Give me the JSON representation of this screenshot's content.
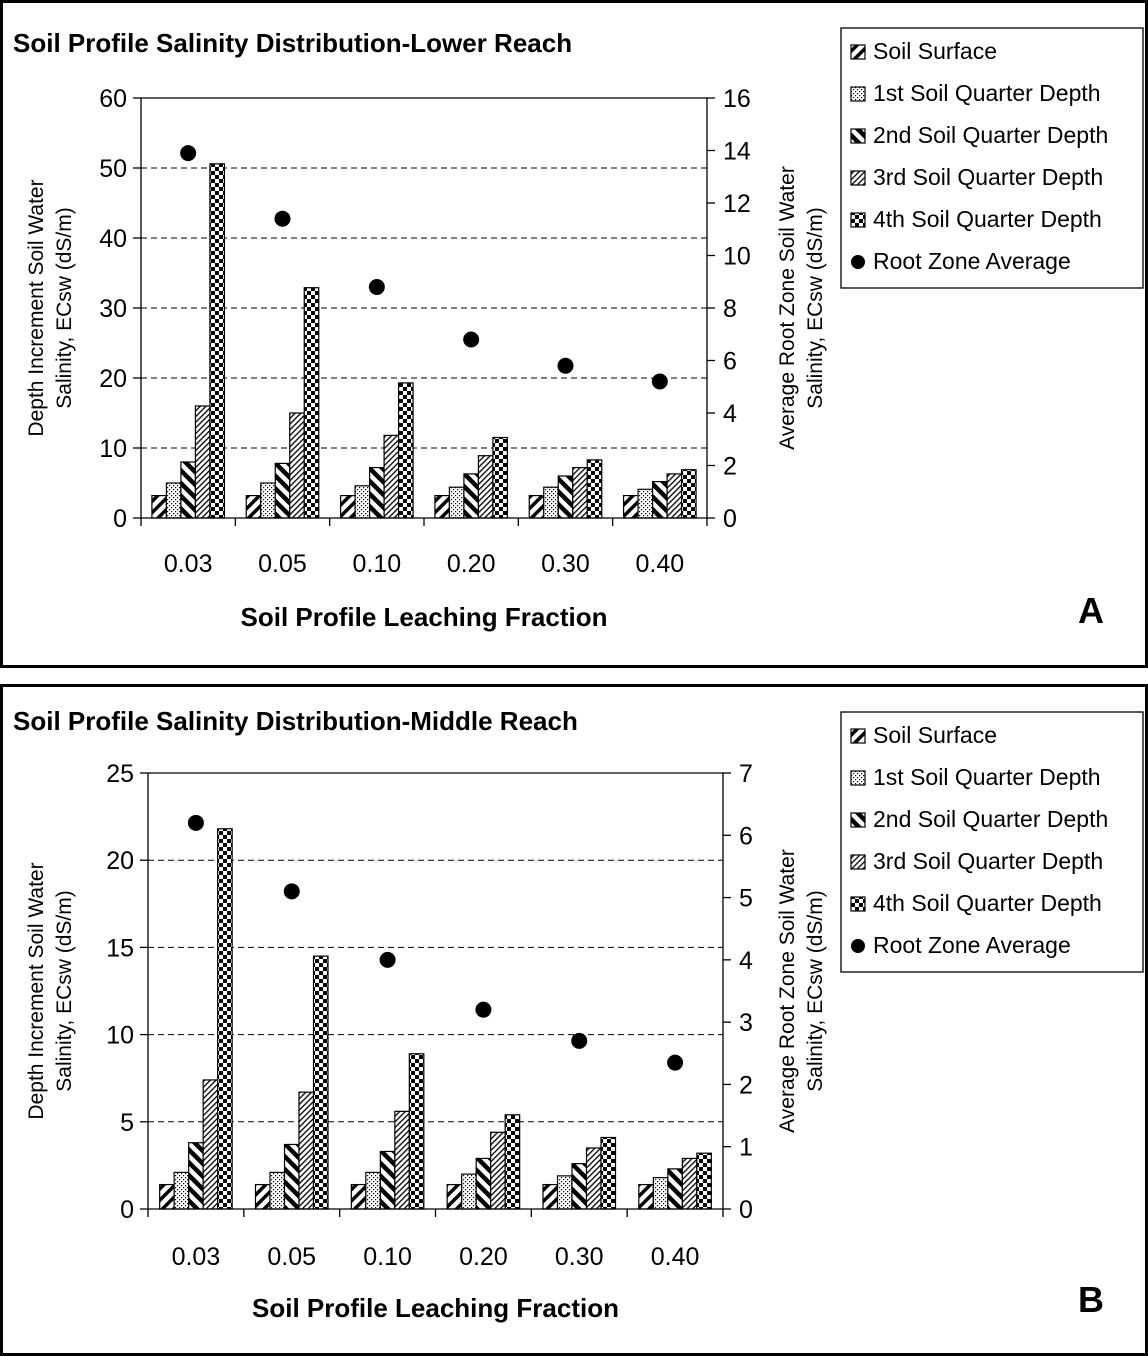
{
  "chart_data": [
    {
      "panel_letter": "A",
      "type": "bar",
      "title": "Soil Profile Salinity Distribution-Lower Reach",
      "xlabel": "Soil Profile Leaching Fraction",
      "ylabel_lines": [
        "Depth Increment Soil Water",
        "Salinity, ECsw (dS/m)"
      ],
      "y2label_lines": [
        "Average Root Zone Soil Water",
        "Salinity, ECsw (dS/m)"
      ],
      "categories": [
        "0.03",
        "0.05",
        "0.10",
        "0.20",
        "0.30",
        "0.40"
      ],
      "ylim": [
        0,
        60
      ],
      "yticks": [
        "0",
        "10",
        "20",
        "30",
        "40",
        "50",
        "60"
      ],
      "y2lim": [
        0,
        16
      ],
      "y2ticks": [
        "0",
        "2",
        "4",
        "6",
        "8",
        "10",
        "12",
        "14",
        "16"
      ],
      "grid": true,
      "legend_position": "top-right",
      "series": [
        {
          "name": "Soil Surface",
          "pattern": "diag-coarse",
          "values": [
            3.2,
            3.2,
            3.2,
            3.2,
            3.2,
            3.2
          ]
        },
        {
          "name": "1st Soil Quarter Depth",
          "pattern": "dots",
          "values": [
            5.0,
            5.0,
            4.6,
            4.4,
            4.4,
            4.1
          ]
        },
        {
          "name": "2nd Soil Quarter Depth",
          "pattern": "diag-reverse-thick",
          "values": [
            8.0,
            7.8,
            7.2,
            6.3,
            6.0,
            5.2
          ]
        },
        {
          "name": "3rd Soil Quarter Depth",
          "pattern": "diag-fine",
          "values": [
            16.0,
            15.0,
            11.8,
            8.9,
            7.2,
            6.3
          ]
        },
        {
          "name": "4th Soil Quarter Depth",
          "pattern": "checker",
          "values": [
            50.6,
            32.9,
            19.3,
            11.5,
            8.3,
            6.9
          ]
        }
      ],
      "secondary_series": {
        "name": "Root Zone Average",
        "axis": "right",
        "values": [
          13.9,
          11.4,
          8.8,
          6.8,
          5.8,
          5.2
        ]
      }
    },
    {
      "panel_letter": "B",
      "type": "bar",
      "title": "Soil Profile Salinity Distribution-Middle Reach",
      "xlabel": "Soil Profile Leaching Fraction",
      "ylabel_lines": [
        "Depth Increment Soil Water",
        "Salinity, ECsw (dS/m)"
      ],
      "y2label_lines": [
        "Average Root Zone Soil Water",
        "Salinity, ECsw (dS/m)"
      ],
      "categories": [
        "0.03",
        "0.05",
        "0.10",
        "0.20",
        "0.30",
        "0.40"
      ],
      "ylim": [
        0,
        25
      ],
      "yticks": [
        "0",
        "5",
        "10",
        "15",
        "20",
        "25"
      ],
      "y2lim": [
        0,
        7
      ],
      "y2ticks": [
        "0",
        "1",
        "2",
        "3",
        "4",
        "5",
        "6",
        "7"
      ],
      "grid": true,
      "legend_position": "top-right",
      "series": [
        {
          "name": "Soil Surface",
          "pattern": "diag-coarse",
          "values": [
            1.4,
            1.4,
            1.4,
            1.4,
            1.4,
            1.4
          ]
        },
        {
          "name": "1st Soil Quarter Depth",
          "pattern": "dots",
          "values": [
            2.1,
            2.1,
            2.1,
            2.0,
            1.9,
            1.8
          ]
        },
        {
          "name": "2nd Soil Quarter Depth",
          "pattern": "diag-reverse-thick",
          "values": [
            3.8,
            3.7,
            3.3,
            2.9,
            2.6,
            2.3
          ]
        },
        {
          "name": "3rd Soil Quarter Depth",
          "pattern": "diag-fine",
          "values": [
            7.4,
            6.7,
            5.6,
            4.4,
            3.5,
            2.9
          ]
        },
        {
          "name": "4th Soil Quarter Depth",
          "pattern": "checker",
          "values": [
            21.8,
            14.5,
            8.9,
            5.4,
            4.1,
            3.2
          ]
        }
      ],
      "secondary_series": {
        "name": "Root Zone Average",
        "axis": "right",
        "values": [
          6.2,
          5.1,
          4.0,
          3.2,
          2.7,
          2.35
        ]
      }
    }
  ]
}
